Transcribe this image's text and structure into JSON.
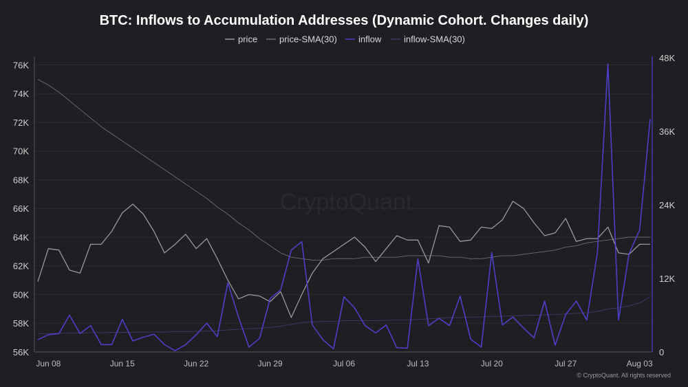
{
  "chart_data": {
    "type": "line",
    "title": "BTC: Inflows to Accumulation Addresses (Dynamic Cohort. Changes daily)",
    "watermark": "CryptoQuant",
    "copyright": "© CryptoQuant. All rights reserved",
    "x_start": "2024-06-07",
    "x_ticks": [
      {
        "label": "Jun 08",
        "index": 1
      },
      {
        "label": "Jun 15",
        "index": 8
      },
      {
        "label": "Jun 22",
        "index": 15
      },
      {
        "label": "Jun 29",
        "index": 22
      },
      {
        "label": "Jul 06",
        "index": 29
      },
      {
        "label": "Jul 13",
        "index": 36
      },
      {
        "label": "Jul 20",
        "index": 43
      },
      {
        "label": "Jul 27",
        "index": 50
      },
      {
        "label": "Aug 03",
        "index": 57
      }
    ],
    "y_left": {
      "range": [
        56000,
        76500
      ],
      "ticks": [
        56000,
        58000,
        60000,
        62000,
        64000,
        66000,
        68000,
        70000,
        72000,
        74000,
        76000
      ],
      "tick_labels": [
        "56K",
        "58K",
        "60K",
        "62K",
        "64K",
        "66K",
        "68K",
        "70K",
        "72K",
        "74K",
        "76K"
      ]
    },
    "y_right": {
      "range": [
        0,
        48000
      ],
      "ticks": [
        0,
        12000,
        24000,
        36000,
        48000
      ],
      "tick_labels": [
        "0",
        "12K",
        "24K",
        "36K",
        "48K"
      ]
    },
    "grid": true,
    "legend_position": "top-center",
    "series": [
      {
        "name": "price",
        "axis": "left",
        "color": "#9a9a9a",
        "values": [
          60900,
          63200,
          63100,
          61700,
          61500,
          63500,
          63500,
          64400,
          65700,
          66300,
          65600,
          64400,
          62900,
          63500,
          64200,
          63200,
          63900,
          62500,
          61000,
          59700,
          60000,
          59900,
          59500,
          60200,
          58400,
          60000,
          61500,
          62500,
          63000,
          63500,
          64000,
          63300,
          62300,
          63200,
          64100,
          63800,
          63800,
          62200,
          64800,
          64700,
          63700,
          63800,
          64700,
          64600,
          65200,
          66500,
          66000,
          65000,
          64100,
          64300,
          65300,
          63700,
          63900,
          63900,
          64700,
          62900,
          62800,
          63500,
          63500
        ]
      },
      {
        "name": "price-SMA(30)",
        "axis": "left",
        "color": "#6e6e6e",
        "values": [
          75000,
          74600,
          74100,
          73500,
          72900,
          72300,
          71700,
          71200,
          70700,
          70200,
          69700,
          69200,
          68700,
          68200,
          67700,
          67200,
          66700,
          66100,
          65600,
          65000,
          64500,
          63900,
          63400,
          62900,
          62600,
          62500,
          62400,
          62400,
          62500,
          62500,
          62500,
          62600,
          62600,
          62600,
          62600,
          62700,
          62700,
          62700,
          62700,
          62600,
          62600,
          62500,
          62500,
          62600,
          62700,
          62700,
          62800,
          62900,
          63000,
          63100,
          63300,
          63400,
          63600,
          63700,
          63800,
          63900,
          64000,
          64000,
          64000
        ]
      },
      {
        "name": "inflow",
        "axis": "right",
        "color": "#4d3fc8",
        "values": [
          2000,
          2800,
          3000,
          6000,
          3000,
          4300,
          1200,
          1200,
          5300,
          1800,
          2400,
          2900,
          1200,
          200,
          1200,
          2800,
          4700,
          2500,
          11300,
          5700,
          800,
          2200,
          8700,
          10100,
          16600,
          18000,
          4400,
          2000,
          500,
          9000,
          7200,
          4300,
          3100,
          4400,
          700,
          600,
          15200,
          4300,
          5500,
          4300,
          9100,
          2100,
          800,
          16200,
          4400,
          5700,
          3900,
          2300,
          8300,
          1100,
          6100,
          8300,
          5200,
          16200,
          47000,
          5200,
          16000,
          19900,
          38000
        ]
      },
      {
        "name": "inflow-SMA(30)",
        "axis": "right",
        "color": "#3d3a66",
        "values": [
          3000,
          3000,
          3050,
          3100,
          3100,
          3150,
          3150,
          3200,
          3200,
          3200,
          3250,
          3250,
          3250,
          3300,
          3300,
          3350,
          3400,
          3450,
          3600,
          3700,
          3800,
          3850,
          4000,
          4200,
          4500,
          4800,
          4900,
          5000,
          5000,
          5100,
          5100,
          5100,
          5100,
          5150,
          5200,
          5200,
          5300,
          5400,
          5500,
          5600,
          5600,
          5700,
          5700,
          5800,
          5800,
          5900,
          5950,
          6000,
          6050,
          6100,
          6200,
          6300,
          6400,
          6600,
          7000,
          7200,
          7500,
          8000,
          9000
        ]
      }
    ]
  }
}
